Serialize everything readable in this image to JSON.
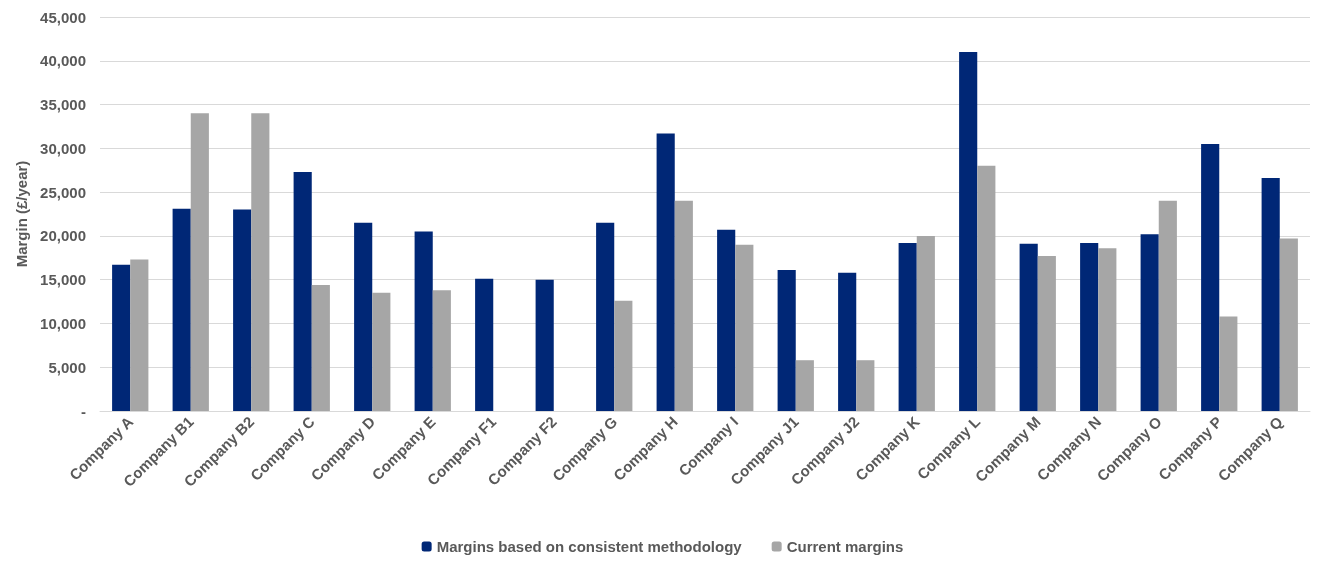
{
  "chart_data": {
    "type": "bar",
    "ylabel": "Margin (£/year)",
    "categories": [
      "Company A",
      "Company B1",
      "Company B2",
      "Company C",
      "Company D",
      "Company E",
      "Company F1",
      "Company F2",
      "Company G",
      "Company H",
      "Company I",
      "Company J1",
      "Company J2",
      "Company K",
      "Company L",
      "Company M",
      "Company N",
      "Company O",
      "Company P",
      "Company Q"
    ],
    "series": [
      {
        "name": "Margins based on consistent methodology",
        "color": "#002776",
        "values": [
          16700,
          23100,
          23000,
          27300,
          21500,
          20500,
          15100,
          15000,
          21500,
          31700,
          20700,
          16100,
          15800,
          19200,
          41000,
          19100,
          19200,
          20200,
          30500,
          26600
        ]
      },
      {
        "name": "Current margins",
        "color": "#a6a6a6",
        "values": [
          17300,
          34000,
          34000,
          14400,
          13500,
          13800,
          null,
          null,
          12600,
          24000,
          19000,
          5800,
          5800,
          20000,
          28000,
          17700,
          18600,
          24000,
          10800,
          19700
        ]
      }
    ],
    "ylim": [
      0,
      45000
    ],
    "yticks": [
      {
        "value": 0,
        "label": "-"
      },
      {
        "value": 5000,
        "label": "5,000"
      },
      {
        "value": 10000,
        "label": "10,000"
      },
      {
        "value": 15000,
        "label": "15,000"
      },
      {
        "value": 20000,
        "label": "20,000"
      },
      {
        "value": 25000,
        "label": "25,000"
      },
      {
        "value": 30000,
        "label": "30,000"
      },
      {
        "value": 35000,
        "label": "35,000"
      },
      {
        "value": 40000,
        "label": "40,000"
      },
      {
        "value": 45000,
        "label": "45,000"
      }
    ],
    "grid": "y",
    "legend": "bottom"
  }
}
